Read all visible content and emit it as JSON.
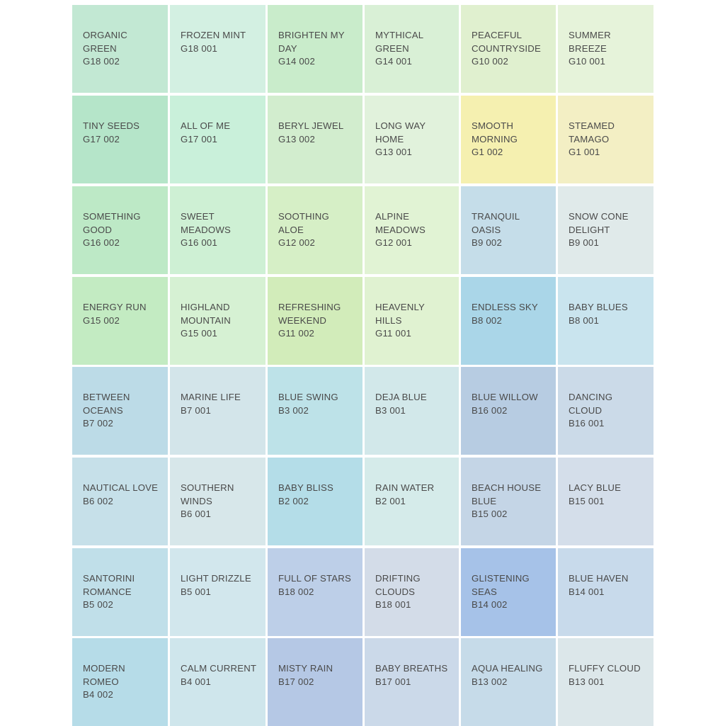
{
  "swatches": [
    [
      {
        "name": "ORGANIC GREEN",
        "code": "G18 002",
        "color": "#c2e8d3"
      },
      {
        "name": "FROZEN MINT",
        "code": "G18 001",
        "color": "#d3f0e2"
      },
      {
        "name": "BRIGHTEN MY DAY",
        "code": "G14 002",
        "color": "#c9eccb"
      },
      {
        "name": "MYTHICAL GREEN",
        "code": "G14 001",
        "color": "#d9f0d6"
      },
      {
        "name": "PEACEFUL COUNTRYSIDE",
        "code": "G10 002",
        "color": "#e0f0cf"
      },
      {
        "name": "SUMMER BREEZE",
        "code": "G10 001",
        "color": "#e6f3da"
      }
    ],
    [
      {
        "name": "TINY SEEDS",
        "code": "G17 002",
        "color": "#b5e5c9"
      },
      {
        "name": "ALL OF ME",
        "code": "G17 001",
        "color": "#c9f0da"
      },
      {
        "name": "BERYL JEWEL",
        "code": "G13 002",
        "color": "#d2edce"
      },
      {
        "name": "LONG WAY HOME",
        "code": "G13 001",
        "color": "#e1f2dc"
      },
      {
        "name": "SMOOTH MORNING",
        "code": "G1 002",
        "color": "#f5f0b0"
      },
      {
        "name": "STEAMED TAMAGO",
        "code": "G1 001",
        "color": "#f3efc4"
      }
    ],
    [
      {
        "name": "SOMETHING GOOD",
        "code": "G16 002",
        "color": "#bde9c6"
      },
      {
        "name": "SWEET MEADOWS",
        "code": "G16 001",
        "color": "#cef0d4"
      },
      {
        "name": "SOOTHING ALOE",
        "code": "G12 002",
        "color": "#d6efc6"
      },
      {
        "name": "ALPINE MEADOWS",
        "code": "G12 001",
        "color": "#e1f3d4"
      },
      {
        "name": "TRANQUIL OASIS",
        "code": "B9 002",
        "color": "#c5dde9"
      },
      {
        "name": "SNOW CONE DELIGHT",
        "code": "B9 001",
        "color": "#e0eaea"
      }
    ],
    [
      {
        "name": "ENERGY RUN",
        "code": "G15 002",
        "color": "#c3ebc2"
      },
      {
        "name": "HIGHLAND MOUNTAIN",
        "code": "G15 001",
        "color": "#d6f1d3"
      },
      {
        "name": "REFRESHING WEEKEND",
        "code": "G11 002",
        "color": "#d2ecba"
      },
      {
        "name": "HEAVENLY HILLS",
        "code": "G11 001",
        "color": "#e0f2d1"
      },
      {
        "name": "ENDLESS SKY",
        "code": "B8 002",
        "color": "#aad6e8"
      },
      {
        "name": "BABY BLUES",
        "code": "B8 001",
        "color": "#c9e4ee"
      }
    ],
    [
      {
        "name": "BETWEEN OCEANS",
        "code": "B7 002",
        "color": "#bcdbe7"
      },
      {
        "name": "MARINE LIFE",
        "code": "B7 001",
        "color": "#d3e5ea"
      },
      {
        "name": "BLUE SWING",
        "code": "B3 002",
        "color": "#bde2e8"
      },
      {
        "name": "DEJA BLUE",
        "code": "B3 001",
        "color": "#d2e8ea"
      },
      {
        "name": "BLUE WILLOW",
        "code": "B16 002",
        "color": "#b7cce2"
      },
      {
        "name": "DANCING CLOUD",
        "code": "B16 001",
        "color": "#cbdae8"
      }
    ],
    [
      {
        "name": "NAUTICAL LOVE",
        "code": "B6 002",
        "color": "#c6e0e9"
      },
      {
        "name": "SOUTHERN WINDS",
        "code": "B6 001",
        "color": "#d7e7ea"
      },
      {
        "name": "BABY BLISS",
        "code": "B2 002",
        "color": "#b4dde8"
      },
      {
        "name": "RAIN WATER",
        "code": "B2 001",
        "color": "#d5ebea"
      },
      {
        "name": "BEACH HOUSE BLUE",
        "code": "B15 002",
        "color": "#c4d5e6"
      },
      {
        "name": "LACY BLUE",
        "code": "B15 001",
        "color": "#d4deea"
      }
    ],
    [
      {
        "name": "SANTORINI ROMANCE",
        "code": "B5 002",
        "color": "#c0dfe9"
      },
      {
        "name": "LIGHT DRIZZLE",
        "code": "B5 001",
        "color": "#d2e7ed"
      },
      {
        "name": "FULL OF STARS",
        "code": "B18 002",
        "color": "#bdcfe8"
      },
      {
        "name": "DRIFTING CLOUDS",
        "code": "B18 001",
        "color": "#d3dce8"
      },
      {
        "name": "GLISTENING SEAS",
        "code": "B14 002",
        "color": "#a6c2e8"
      },
      {
        "name": "BLUE HAVEN",
        "code": "B14 001",
        "color": "#c8daeb"
      }
    ],
    [
      {
        "name": "MODERN ROMEO",
        "code": "B4 002",
        "color": "#b6dce8"
      },
      {
        "name": "CALM CURRENT",
        "code": "B4 001",
        "color": "#cfe6ec"
      },
      {
        "name": "MISTY RAIN",
        "code": "B17 002",
        "color": "#b5c8e5"
      },
      {
        "name": "BABY BREATHS",
        "code": "B17 001",
        "color": "#cbd9e9"
      },
      {
        "name": "AQUA HEALING",
        "code": "B13 002",
        "color": "#c6dbe9"
      },
      {
        "name": "FLUFFY CLOUD",
        "code": "B13 001",
        "color": "#dce7ea"
      }
    ]
  ]
}
